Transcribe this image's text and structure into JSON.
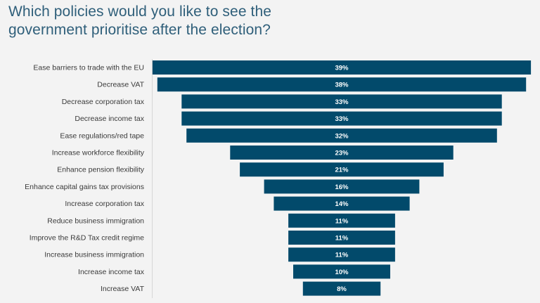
{
  "title": "Which policies would you like to see the government prioritise after the election?",
  "chart_data": {
    "type": "bar",
    "orientation": "horizontal",
    "style": "funnel-centered",
    "bar_color": "#024a6b",
    "categories": [
      "Ease barriers to trade with the EU",
      "Decrease VAT",
      "Decrease corporation tax",
      "Decrease income tax",
      "Ease regulations/red tape",
      "Increase workforce flexibility",
      "Enhance pension flexibility",
      "Enhance capital gains tax provisions",
      "Increase corporation tax",
      "Reduce business immigration",
      "Improve the R&D Tax credit regime",
      "Increase business immigration",
      "Increase income tax",
      "Increase VAT"
    ],
    "values": [
      39,
      38,
      33,
      33,
      32,
      23,
      21,
      16,
      14,
      11,
      11,
      11,
      10,
      8
    ],
    "value_labels": [
      "39%",
      "38%",
      "33%",
      "33%",
      "32%",
      "23%",
      "21%",
      "16%",
      "14%",
      "11%",
      "11%",
      "11%",
      "10%",
      "8%"
    ],
    "unit": "%",
    "title": "Which policies would you like to see the government prioritise after the election?",
    "xlabel": "",
    "ylabel": "",
    "grid": false,
    "legend": "none"
  }
}
